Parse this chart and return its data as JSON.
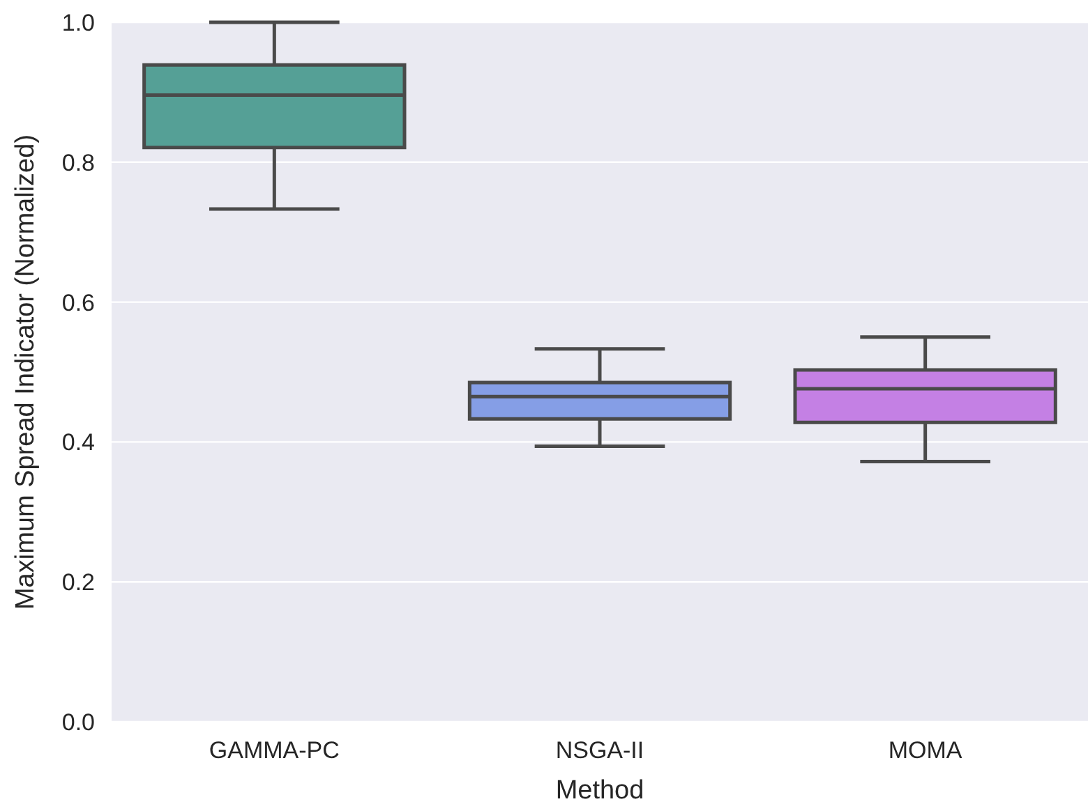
{
  "chart_data": {
    "type": "box",
    "xlabel": "Method",
    "ylabel": "Maximum Spread Indicator (Normalized)",
    "categories": [
      "GAMMA-PC",
      "NSGA-II",
      "MOMA"
    ],
    "colors": [
      "#55a096",
      "#859ee6",
      "#c480e4"
    ],
    "boxes": [
      {
        "low": 0.733,
        "q1": 0.821,
        "median": 0.896,
        "q3": 0.939,
        "high": 1.0
      },
      {
        "low": 0.394,
        "q1": 0.433,
        "median": 0.465,
        "q3": 0.485,
        "high": 0.533
      },
      {
        "low": 0.372,
        "q1": 0.428,
        "median": 0.476,
        "q3": 0.503,
        "high": 0.55
      }
    ],
    "ylim": [
      0,
      1
    ],
    "yticks": [
      {
        "value": 0,
        "label": "0.0"
      },
      0.2,
      0.4,
      0.6,
      0.8,
      {
        "value": 1,
        "label": "1.0"
      }
    ],
    "grid": "y"
  }
}
